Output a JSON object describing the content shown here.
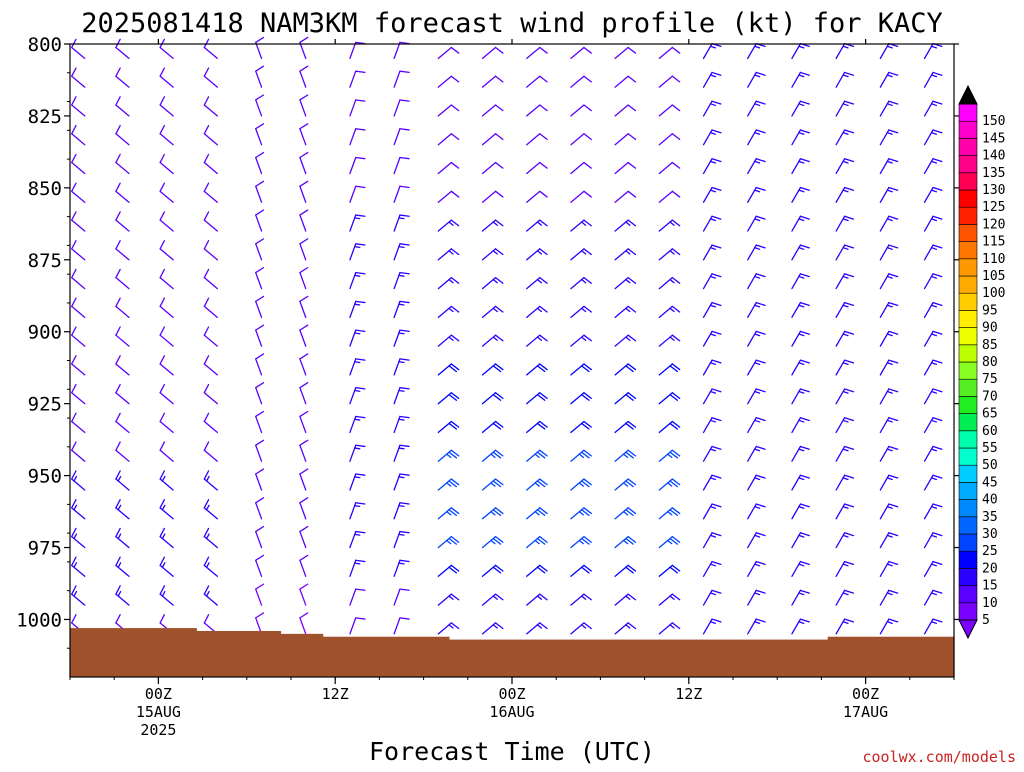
{
  "chart_data": {
    "type": "wind_barb_profile",
    "title": "2025081418 NAM3KM forecast wind profile (kt) for KACY",
    "xlabel": "Forecast Time (UTC)",
    "ylabel": "",
    "credit": "coolwx.com/models",
    "y_axis": {
      "scale": "pressure_hPa",
      "range": [
        1020,
        800
      ],
      "inverted": true,
      "ticks": [
        800,
        825,
        850,
        875,
        900,
        925,
        950,
        975,
        1000
      ]
    },
    "x_axis": {
      "start_time": "2025-08-14T18Z",
      "end_time": "2025-08-17T06Z",
      "ticks": [
        {
          "time": "2025-08-15T00Z",
          "label1": "00Z",
          "label2": "15AUG",
          "label3": "2025"
        },
        {
          "time": "2025-08-15T12Z",
          "label1": "12Z",
          "label2": "",
          "label3": ""
        },
        {
          "time": "2025-08-16T00Z",
          "label1": "00Z",
          "label2": "16AUG",
          "label3": ""
        },
        {
          "time": "2025-08-16T12Z",
          "label1": "12Z",
          "label2": "",
          "label3": ""
        },
        {
          "time": "2025-08-17T00Z",
          "label1": "00Z",
          "label2": "17AUG",
          "label3": ""
        }
      ]
    },
    "colorbar": {
      "units": "kt",
      "levels": [
        5,
        10,
        15,
        20,
        25,
        30,
        35,
        40,
        45,
        50,
        55,
        60,
        65,
        70,
        75,
        80,
        85,
        90,
        95,
        100,
        105,
        110,
        115,
        120,
        125,
        130,
        135,
        140,
        145,
        150
      ],
      "colors": [
        "#7a00ff",
        "#5a00ff",
        "#2a00ff",
        "#0000ff",
        "#0044ff",
        "#0066ff",
        "#0088ff",
        "#00aaff",
        "#00ccff",
        "#00ffcc",
        "#00ffaa",
        "#00ee55",
        "#22ee22",
        "#55ee22",
        "#88ff22",
        "#bbff00",
        "#eeff00",
        "#ffee00",
        "#ffcc00",
        "#ffaa00",
        "#ff9900",
        "#ff7700",
        "#ff5500",
        "#ff2200",
        "#ff0000",
        "#ff0055",
        "#ff0088",
        "#ff00aa",
        "#ff00cc",
        "#ff00ff"
      ]
    },
    "surface": {
      "color": "#a0522d",
      "pressure_hPa": [
        1003,
        1003,
        1003,
        1004,
        1004,
        1005,
        1006,
        1006,
        1006,
        1007,
        1007,
        1007,
        1007,
        1007,
        1007,
        1007,
        1007,
        1007,
        1006,
        1006,
        1006
      ]
    },
    "wind_field": {
      "time_step_hours": 3,
      "pressure_levels": [
        1005,
        995,
        985,
        975,
        965,
        955,
        945,
        935,
        925,
        915,
        905,
        895,
        885,
        875,
        865,
        855,
        845,
        835,
        825,
        815,
        805
      ],
      "regimes": [
        {
          "end_time": "2025-08-15T04Z",
          "direction_deg": 310,
          "speed_kt": [
            12,
            15,
            15,
            15,
            15,
            15,
            10,
            10,
            10,
            10,
            10,
            10,
            10,
            10,
            10,
            10,
            10,
            10,
            10,
            10,
            10
          ]
        },
        {
          "end_time": "2025-08-15T10Z",
          "direction_deg": 340,
          "speed_kt": [
            8,
            8,
            10,
            10,
            10,
            10,
            10,
            10,
            10,
            10,
            10,
            10,
            10,
            10,
            10,
            10,
            10,
            10,
            10,
            10,
            10
          ]
        },
        {
          "end_time": "2025-08-15T18Z",
          "direction_deg": 20,
          "speed_kt": [
            10,
            10,
            15,
            15,
            15,
            15,
            15,
            15,
            15,
            15,
            15,
            15,
            15,
            15,
            15,
            10,
            10,
            10,
            10,
            10,
            10
          ]
        },
        {
          "end_time": "2025-08-16T12Z",
          "direction_deg": 50,
          "speed_kt": [
            15,
            15,
            20,
            25,
            25,
            25,
            25,
            20,
            20,
            20,
            15,
            15,
            15,
            15,
            15,
            10,
            10,
            10,
            10,
            10,
            10
          ]
        },
        {
          "end_time": "2025-08-17T06Z",
          "direction_deg": 30,
          "speed_kt": [
            15,
            15,
            15,
            15,
            15,
            15,
            15,
            15,
            15,
            15,
            15,
            15,
            15,
            15,
            15,
            15,
            15,
            15,
            15,
            15,
            15
          ]
        }
      ]
    }
  }
}
